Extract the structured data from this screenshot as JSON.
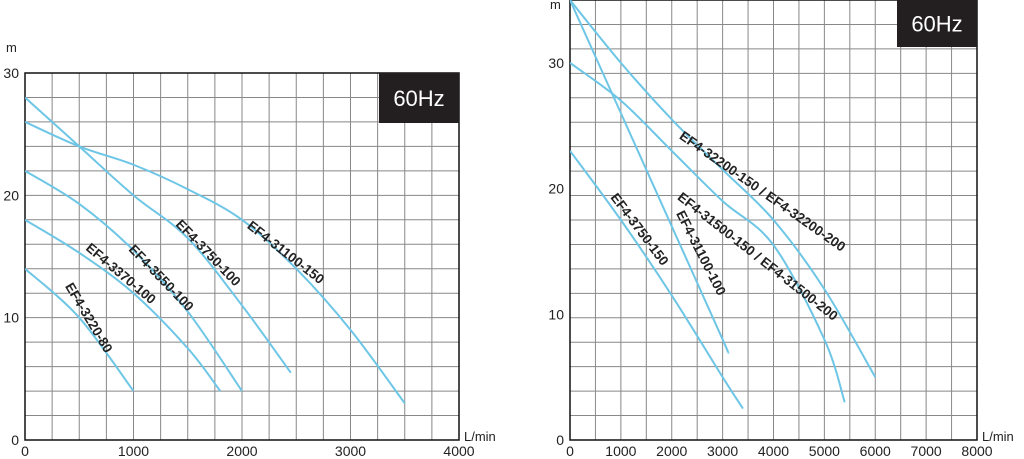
{
  "curve_color": "#6ec6e6",
  "chart_data": [
    {
      "type": "line",
      "badge": "60Hz",
      "xlabel": "L/min",
      "ylabel": "m",
      "xlim": [
        0,
        4000
      ],
      "ylim": [
        0,
        30
      ],
      "xticks": [
        0,
        1000,
        2000,
        3000,
        4000
      ],
      "yticks": [
        0,
        10,
        20,
        30
      ],
      "grid": true,
      "series": [
        {
          "name": "EF4-3220-80",
          "x": [
            0,
            500,
            1000
          ],
          "y": [
            14,
            10,
            4
          ]
        },
        {
          "name": "EF4-3370-100",
          "x": [
            0,
            500,
            1000,
            1500,
            1800
          ],
          "y": [
            18,
            15.3,
            12,
            7.5,
            4
          ]
        },
        {
          "name": "EF4-3550-100",
          "x": [
            0,
            500,
            1000,
            1500,
            2000
          ],
          "y": [
            22,
            19.3,
            15.5,
            10.5,
            4
          ]
        },
        {
          "name": "EF4-3750-100",
          "x": [
            0,
            500,
            1000,
            1500,
            2000,
            2450
          ],
          "y": [
            28,
            24,
            20,
            16.5,
            11,
            5.5
          ]
        },
        {
          "name": "EF4-31100-150",
          "x": [
            0,
            500,
            1000,
            1500,
            2000,
            2500,
            3000,
            3500
          ],
          "y": [
            26,
            24,
            22.5,
            20.5,
            18,
            14,
            9,
            3
          ]
        }
      ]
    },
    {
      "type": "line",
      "badge": "60Hz",
      "xlabel": "L/min",
      "ylabel": "m",
      "xlim": [
        0,
        8000
      ],
      "ylim": [
        0,
        35
      ],
      "xticks": [
        0,
        1000,
        2000,
        3000,
        4000,
        5000,
        6000,
        7000,
        8000
      ],
      "yticks": [
        0,
        10,
        20,
        30
      ],
      "grid": true,
      "series": [
        {
          "name": "EF4-3750-150",
          "x": [
            0,
            1000,
            2000,
            3000,
            3400
          ],
          "y": [
            23,
            17.5,
            11.5,
            5,
            2.5
          ]
        },
        {
          "name": "EF4-31100-100",
          "x": [
            0,
            1000,
            2000,
            3000,
            3100
          ],
          "y": [
            35,
            26,
            17,
            8,
            7
          ]
        },
        {
          "name": "EF4-31500-150 / EF4-31500-200",
          "x": [
            0,
            1000,
            2000,
            3000,
            4000,
            5000,
            5400
          ],
          "y": [
            30,
            27,
            23,
            19,
            15.5,
            8,
            3
          ]
        },
        {
          "name": "EF4-32200-150 / EF4-32200-200",
          "x": [
            0,
            1000,
            2000,
            3000,
            4000,
            5000,
            6000
          ],
          "y": [
            35,
            30,
            25.5,
            21.5,
            17.5,
            12,
            5
          ]
        }
      ]
    }
  ]
}
